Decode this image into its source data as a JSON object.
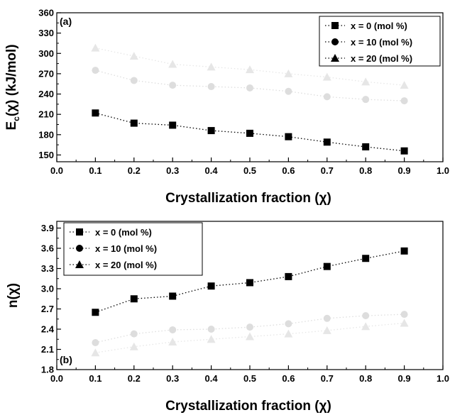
{
  "chart_data": [
    {
      "type": "scatter",
      "panel_label": "(a)",
      "xlabel": "Crystallization fraction (χ)",
      "ylabel": "E c(χ) (kJ/mol)",
      "ylabel_parts": {
        "main": "E",
        "sub": "c",
        "rest": "(χ) (kJ/mol)"
      },
      "xlim": [
        0.0,
        1.0
      ],
      "ylim": [
        140,
        360
      ],
      "xticks": [
        "0.0",
        "0.1",
        "0.2",
        "0.3",
        "0.4",
        "0.5",
        "0.6",
        "0.7",
        "0.8",
        "0.9",
        "1.0"
      ],
      "yticks": [
        "150",
        "180",
        "210",
        "240",
        "270",
        "300",
        "330",
        "360"
      ],
      "legend_position": "top-right",
      "x": [
        0.1,
        0.2,
        0.3,
        0.4,
        0.5,
        0.6,
        0.7,
        0.8,
        0.9
      ],
      "series": [
        {
          "name": "x = 0   (mol %)",
          "marker": "square",
          "color": "#000000",
          "values": [
            212,
            197,
            194,
            186,
            182,
            177,
            169,
            162,
            156
          ]
        },
        {
          "name": "x = 10 (mol %)",
          "marker": "circle",
          "color": "#dddddd",
          "values": [
            275,
            260,
            253,
            251,
            249,
            244,
            236,
            232,
            230
          ]
        },
        {
          "name": "x = 20 (mol %)",
          "marker": "triangle",
          "color": "#e6e6e6",
          "values": [
            308,
            296,
            284,
            280,
            276,
            270,
            265,
            258,
            253
          ]
        }
      ]
    },
    {
      "type": "scatter",
      "panel_label": "(b)",
      "xlabel": "Crystallization fraction (χ)",
      "ylabel": "n(χ)",
      "xlim": [
        0.0,
        1.0
      ],
      "ylim": [
        1.8,
        4.0
      ],
      "xticks": [
        "0.0",
        "0.1",
        "0.2",
        "0.3",
        "0.4",
        "0.5",
        "0.6",
        "0.7",
        "0.8",
        "0.9",
        "1.0"
      ],
      "yticks": [
        "1.8",
        "2.1",
        "2.4",
        "2.7",
        "3.0",
        "3.3",
        "3.6",
        "3.9"
      ],
      "legend_position": "top-left",
      "x": [
        0.1,
        0.2,
        0.3,
        0.4,
        0.5,
        0.6,
        0.7,
        0.8,
        0.9
      ],
      "series": [
        {
          "name": "x = 0   (mol %)",
          "marker": "square",
          "color": "#000000",
          "values": [
            2.65,
            2.85,
            2.89,
            3.04,
            3.09,
            3.18,
            3.33,
            3.45,
            3.56
          ]
        },
        {
          "name": "x = 10 (mol %)",
          "marker": "circle",
          "color": "#dddddd",
          "values": [
            2.2,
            2.33,
            2.39,
            2.4,
            2.43,
            2.48,
            2.56,
            2.6,
            2.62
          ]
        },
        {
          "name": "x = 20 (mol %)",
          "marker": "triangle",
          "color": "#e6e6e6",
          "values": [
            2.05,
            2.14,
            2.21,
            2.25,
            2.29,
            2.33,
            2.38,
            2.44,
            2.49
          ]
        }
      ]
    }
  ]
}
